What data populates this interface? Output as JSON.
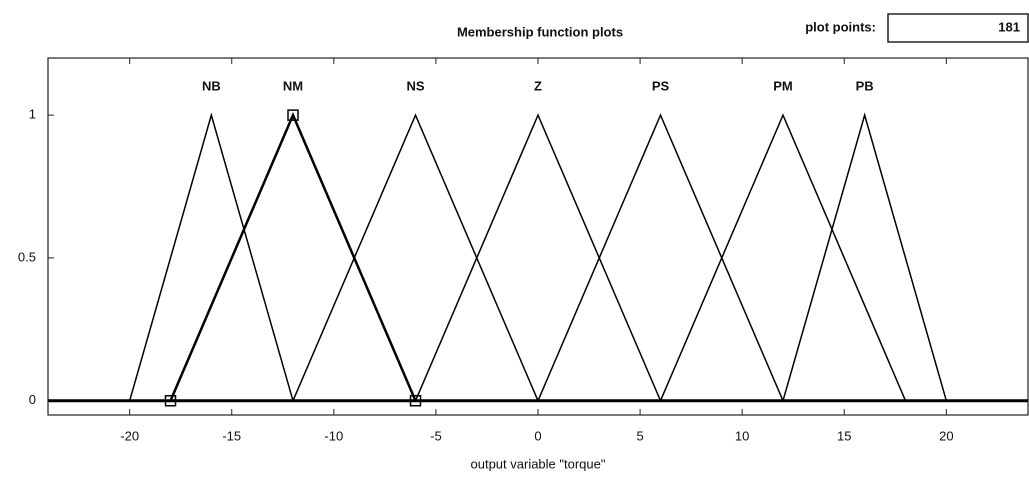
{
  "chart_data": {
    "type": "membership",
    "title": "Membership function plots",
    "plot_points_label": "plot points:",
    "plot_points": 181,
    "x_label": "output variable \"torque\"",
    "xlim": [
      -24,
      24
    ],
    "ylim": [
      -0.05,
      1.2
    ],
    "xticks": [
      -20,
      -15,
      -10,
      -5,
      0,
      5,
      10,
      15,
      20
    ],
    "yticks": [
      0,
      0.5,
      1
    ],
    "color": "#000000",
    "selected": "NM",
    "series": [
      {
        "name": "NB",
        "x": [
          -20,
          -16,
          -12
        ],
        "values": [
          0,
          1,
          0
        ]
      },
      {
        "name": "NM",
        "x": [
          -18,
          -12,
          -6
        ],
        "values": [
          0,
          1,
          0
        ]
      },
      {
        "name": "NS",
        "x": [
          -12,
          -6,
          0
        ],
        "values": [
          0,
          1,
          0
        ]
      },
      {
        "name": "Z",
        "x": [
          -6,
          0,
          6
        ],
        "values": [
          0,
          1,
          0
        ]
      },
      {
        "name": "PS",
        "x": [
          0,
          6,
          12
        ],
        "values": [
          0,
          1,
          0
        ]
      },
      {
        "name": "PM",
        "x": [
          6,
          12,
          18
        ],
        "values": [
          0,
          1,
          0
        ]
      },
      {
        "name": "PB",
        "x": [
          12,
          16,
          20
        ],
        "values": [
          0,
          1,
          0
        ]
      }
    ]
  }
}
